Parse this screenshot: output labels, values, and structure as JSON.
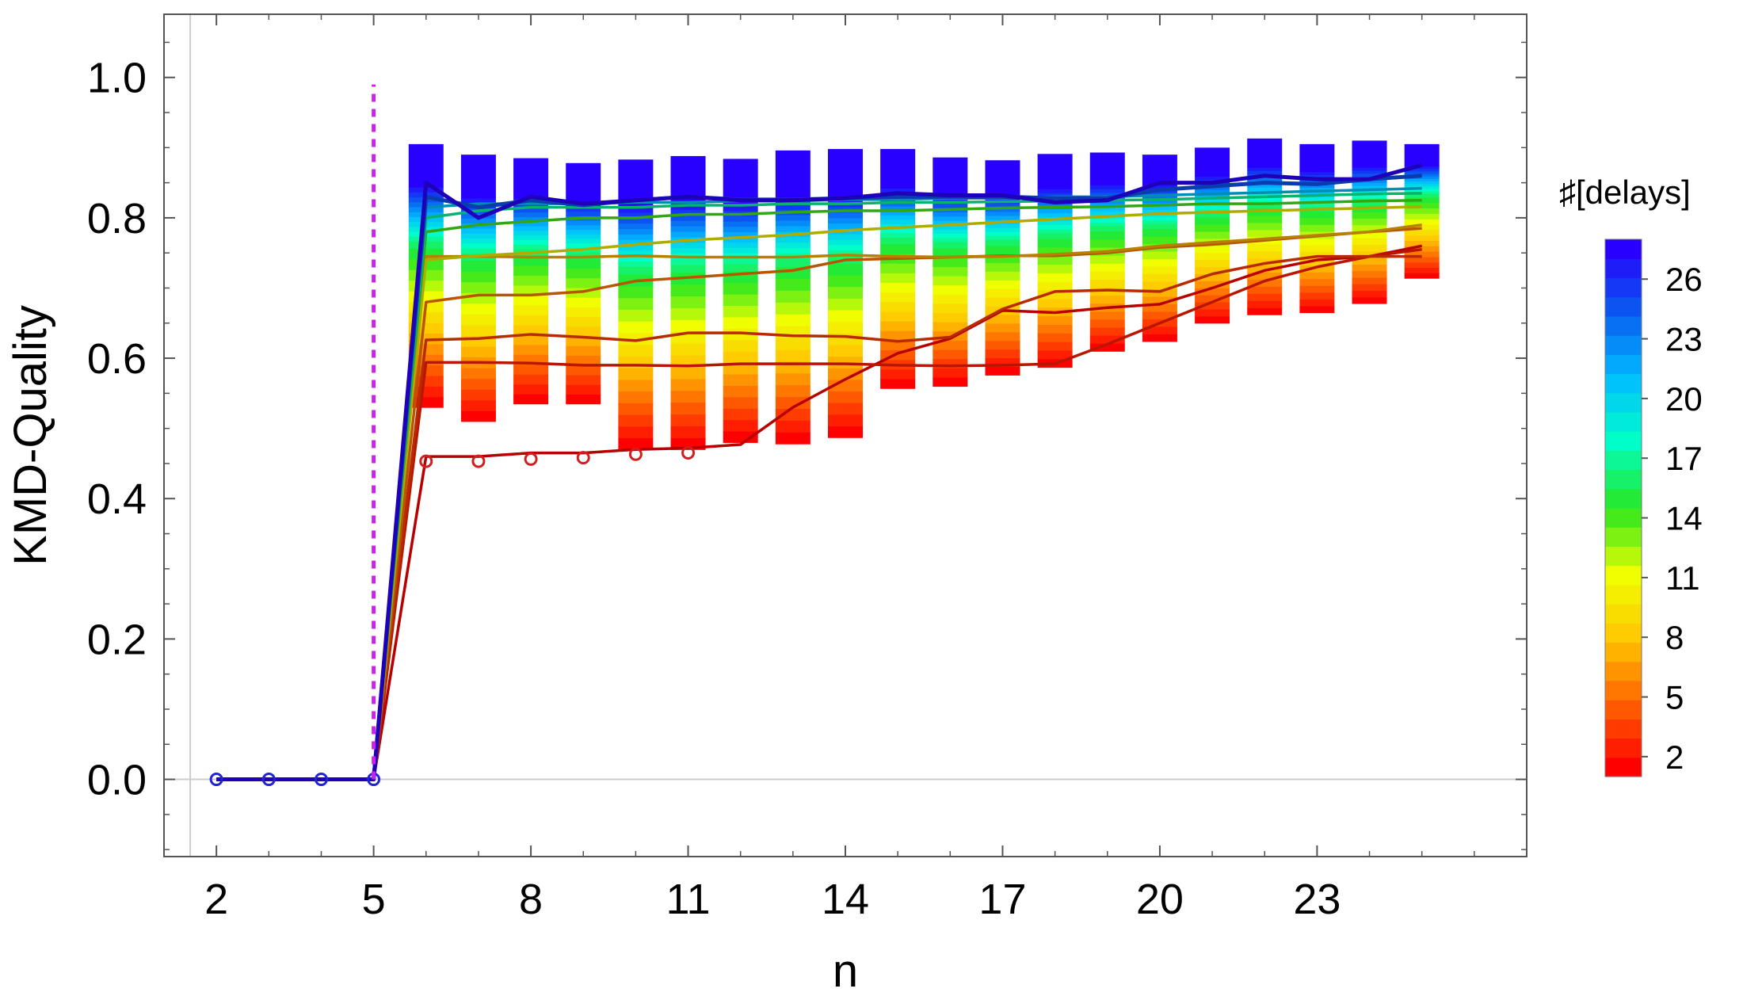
{
  "chart_data": {
    "type": "line",
    "title": "",
    "xlabel": "n",
    "ylabel": "KMD-Quality",
    "xlim": [
      1,
      27
    ],
    "ylim": [
      -0.11,
      1.09
    ],
    "x_ticks": [
      2,
      5,
      8,
      11,
      14,
      17,
      20,
      23
    ],
    "x_tick_labels": [
      "2",
      "5",
      "8",
      "11",
      "14",
      "17",
      "20",
      "23"
    ],
    "y_ticks": [
      0.0,
      0.2,
      0.4,
      0.6,
      0.8,
      1.0
    ],
    "y_tick_labels": [
      "0.0",
      "0.2",
      "0.4",
      "0.6",
      "0.8",
      "1.0"
    ],
    "threshold_line": {
      "x": 5,
      "style": "dashed",
      "color": "#cc22ee"
    },
    "n_values": [
      2,
      3,
      4,
      5,
      6,
      7,
      8,
      9,
      10,
      11,
      12,
      13,
      14,
      15,
      16,
      17,
      18,
      19,
      20,
      21,
      22,
      23,
      24,
      25
    ],
    "delays_max": 28,
    "series_by_delays": [
      {
        "delays": 1,
        "values": [
          0,
          0,
          0,
          0,
          0.46,
          0.46,
          0.465,
          0.465,
          0.47,
          0.472,
          0.477,
          0.53,
          0.57,
          0.607,
          0.628,
          0.668,
          0.665,
          0.672,
          0.677,
          0.7,
          0.725,
          0.74,
          0.745,
          0.76
        ]
      },
      {
        "delays": 2,
        "values": [
          0,
          0,
          0,
          0,
          0.594,
          0.594,
          0.593,
          0.59,
          0.59,
          0.589,
          0.592,
          0.592,
          0.592,
          0.59,
          0.589,
          0.59,
          0.592,
          0.62,
          0.65,
          0.68,
          0.71,
          0.73,
          0.745,
          0.755
        ]
      },
      {
        "delays": 3,
        "values": [
          0,
          0,
          0,
          0,
          0.626,
          0.628,
          0.634,
          0.63,
          0.625,
          0.636,
          0.636,
          0.632,
          0.631,
          0.624,
          0.63,
          0.67,
          0.695,
          0.697,
          0.695,
          0.72,
          0.735,
          0.745,
          0.745,
          0.745
        ]
      },
      {
        "delays": 5,
        "values": [
          0,
          0,
          0,
          0,
          0.68,
          0.69,
          0.69,
          0.695,
          0.71,
          0.715,
          0.72,
          0.725,
          0.74,
          0.742,
          0.744,
          0.746,
          0.746,
          0.75,
          0.758,
          0.762,
          0.768,
          0.774,
          0.78,
          0.785
        ]
      },
      {
        "delays": 7,
        "values": [
          0,
          0,
          0,
          0,
          0.745,
          0.745,
          0.744,
          0.744,
          0.746,
          0.744,
          0.744,
          0.744,
          0.747,
          0.745,
          0.744,
          0.745,
          0.748,
          0.752,
          0.76,
          0.765,
          0.77,
          0.775,
          0.78,
          0.79
        ]
      },
      {
        "delays": 10,
        "values": [
          0,
          0,
          0,
          0,
          0.74,
          0.746,
          0.75,
          0.755,
          0.762,
          0.768,
          0.772,
          0.776,
          0.782,
          0.786,
          0.79,
          0.794,
          0.798,
          0.802,
          0.806,
          0.808,
          0.81,
          0.812,
          0.814,
          0.816
        ]
      },
      {
        "delays": 14,
        "values": [
          0,
          0,
          0,
          0,
          0.78,
          0.79,
          0.795,
          0.8,
          0.8,
          0.805,
          0.805,
          0.808,
          0.81,
          0.81,
          0.812,
          0.814,
          0.815,
          0.816,
          0.818,
          0.82,
          0.82,
          0.822,
          0.824,
          0.825
        ]
      },
      {
        "delays": 17,
        "values": [
          0,
          0,
          0,
          0,
          0.8,
          0.81,
          0.815,
          0.815,
          0.815,
          0.818,
          0.818,
          0.82,
          0.82,
          0.822,
          0.822,
          0.823,
          0.824,
          0.825,
          0.826,
          0.828,
          0.83,
          0.832,
          0.834,
          0.835
        ]
      },
      {
        "delays": 21,
        "values": [
          0,
          0,
          0,
          0,
          0.815,
          0.82,
          0.82,
          0.82,
          0.822,
          0.822,
          0.824,
          0.824,
          0.826,
          0.826,
          0.828,
          0.828,
          0.83,
          0.83,
          0.832,
          0.834,
          0.836,
          0.838,
          0.84,
          0.842
        ]
      },
      {
        "delays": 25,
        "values": [
          0,
          0,
          0,
          0,
          0.83,
          0.815,
          0.825,
          0.818,
          0.825,
          0.83,
          0.826,
          0.826,
          0.828,
          0.83,
          0.83,
          0.83,
          0.828,
          0.828,
          0.84,
          0.845,
          0.85,
          0.848,
          0.855,
          0.86
        ]
      },
      {
        "delays": 28,
        "values": [
          0,
          0,
          0,
          0,
          0.85,
          0.8,
          0.83,
          0.82,
          0.825,
          0.83,
          0.825,
          0.825,
          0.828,
          0.835,
          0.832,
          0.832,
          0.822,
          0.825,
          0.85,
          0.85,
          0.86,
          0.855,
          0.855,
          0.875
        ]
      }
    ],
    "ranges_by_n": [
      {
        "n": 6,
        "min": 0.53,
        "max": 0.905
      },
      {
        "n": 7,
        "min": 0.51,
        "max": 0.89
      },
      {
        "n": 8,
        "min": 0.535,
        "max": 0.885
      },
      {
        "n": 9,
        "min": 0.535,
        "max": 0.878
      },
      {
        "n": 10,
        "min": 0.47,
        "max": 0.883
      },
      {
        "n": 11,
        "min": 0.47,
        "max": 0.888
      },
      {
        "n": 12,
        "min": 0.48,
        "max": 0.884
      },
      {
        "n": 13,
        "min": 0.478,
        "max": 0.896
      },
      {
        "n": 14,
        "min": 0.487,
        "max": 0.898
      },
      {
        "n": 15,
        "min": 0.557,
        "max": 0.898
      },
      {
        "n": 16,
        "min": 0.56,
        "max": 0.886
      },
      {
        "n": 17,
        "min": 0.576,
        "max": 0.882
      },
      {
        "n": 18,
        "min": 0.587,
        "max": 0.891
      },
      {
        "n": 19,
        "min": 0.61,
        "max": 0.893
      },
      {
        "n": 20,
        "min": 0.624,
        "max": 0.89
      },
      {
        "n": 21,
        "min": 0.65,
        "max": 0.9
      },
      {
        "n": 22,
        "min": 0.662,
        "max": 0.913
      },
      {
        "n": 23,
        "min": 0.665,
        "max": 0.905
      },
      {
        "n": 24,
        "min": 0.678,
        "max": 0.91
      },
      {
        "n": 25,
        "min": 0.714,
        "max": 0.905
      }
    ],
    "low_markers": [
      {
        "n": 6,
        "value": 0.46
      },
      {
        "n": 7,
        "value": 0.46
      },
      {
        "n": 8,
        "value": 0.463
      },
      {
        "n": 9,
        "value": 0.465
      },
      {
        "n": 10,
        "value": 0.47
      },
      {
        "n": 11,
        "value": 0.472
      }
    ],
    "zero_markers": [
      {
        "n": 2,
        "value": 0
      },
      {
        "n": 3,
        "value": 0
      },
      {
        "n": 4,
        "value": 0
      },
      {
        "n": 5,
        "value": 0
      }
    ],
    "colorbar": {
      "title": "♯[delays]",
      "min": 1,
      "max": 28,
      "ticks": [
        2,
        5,
        8,
        11,
        14,
        17,
        20,
        23,
        26
      ],
      "tick_labels": [
        "2",
        "5",
        "8",
        "11",
        "14",
        "17",
        "20",
        "23",
        "26"
      ],
      "colormap": "rainbow (red → yellow → green → cyan → blue)"
    }
  }
}
